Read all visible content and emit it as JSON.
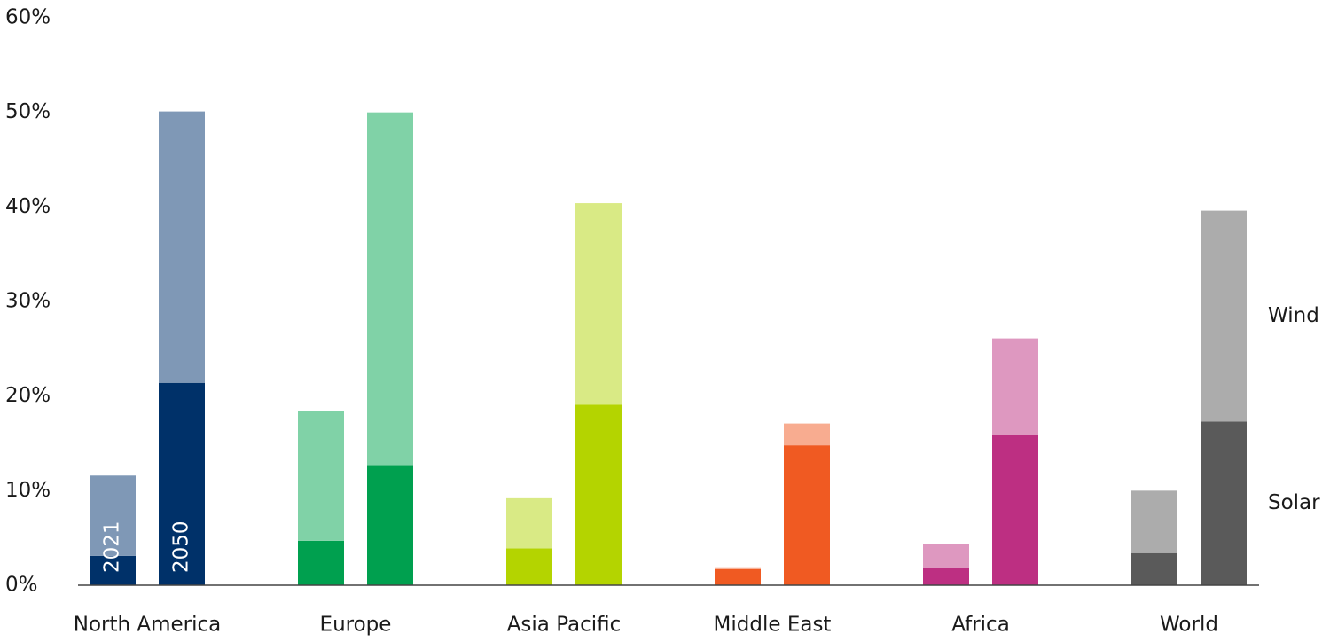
{
  "chart_data": {
    "type": "stacked_bar",
    "categories": [
      "North America",
      "Europe",
      "Asia Pacific",
      "Middle East",
      "Africa",
      "World"
    ],
    "years": [
      "2021",
      "2050"
    ],
    "series": [
      {
        "name": "Solar",
        "colors": [
          "#003169",
          "#00a04f",
          "#b4d400",
          "#f05a22",
          "#bd2f82",
          "#5a5a5a"
        ],
        "values": [
          [
            3.1,
            21.4
          ],
          [
            4.7,
            12.7
          ],
          [
            3.9,
            19.1
          ],
          [
            1.7,
            14.8
          ],
          [
            1.8,
            15.9
          ],
          [
            3.4,
            17.3
          ]
        ]
      },
      {
        "name": "Wind",
        "colors": [
          "#7f98b6",
          "#80d2a7",
          "#d9ea85",
          "#f8ac90",
          "#de98c0",
          "#acacac"
        ],
        "values": [
          [
            8.5,
            28.7
          ],
          [
            13.7,
            37.3
          ],
          [
            5.3,
            21.3
          ],
          [
            0.2,
            2.3
          ],
          [
            2.6,
            10.2
          ],
          [
            6.6,
            22.3
          ]
        ]
      }
    ],
    "ylim": [
      0,
      60
    ],
    "yticks": [
      {
        "value": 0,
        "label": "0%"
      },
      {
        "value": 10,
        "label": "10%"
      },
      {
        "value": 20,
        "label": "20%"
      },
      {
        "value": 30,
        "label": "30%"
      },
      {
        "value": 40,
        "label": "40%"
      },
      {
        "value": 50,
        "label": "50%"
      },
      {
        "value": 60,
        "label": "60%"
      }
    ],
    "grid": false
  }
}
